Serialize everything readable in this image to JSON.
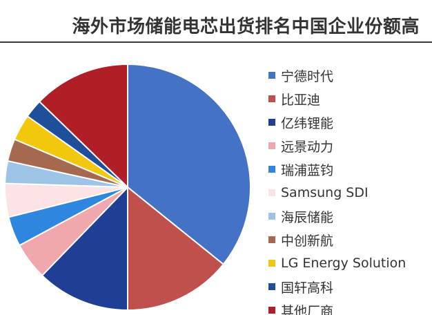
{
  "chart_data": {
    "type": "pie",
    "title": "海外市场储能电芯出货排名中国企业份额高",
    "legend_position": "right",
    "start_angle_deg": 0,
    "direction": "clockwise",
    "series": [
      {
        "name": "宁德时代",
        "value": 36.5,
        "color": "#4472C4"
      },
      {
        "name": "比亚迪",
        "value": 14.5,
        "color": "#C0504D"
      },
      {
        "name": "亿纬锂能",
        "value": 12.5,
        "color": "#1F3F94"
      },
      {
        "name": "远景动力",
        "value": 5.0,
        "color": "#F0A7AE"
      },
      {
        "name": "瑞浦蓝钧",
        "value": 4.0,
        "color": "#2E86DE"
      },
      {
        "name": "Samsung SDI",
        "value": 4.5,
        "color": "#FCE4E6"
      },
      {
        "name": "海辰储能",
        "value": 3.0,
        "color": "#9DC3E6"
      },
      {
        "name": "中创新航",
        "value": 3.0,
        "color": "#A5694F"
      },
      {
        "name": "LG Energy Solution",
        "value": 3.5,
        "color": "#F2C80F"
      },
      {
        "name": "国轩高科",
        "value": 2.5,
        "color": "#1F4E9A"
      },
      {
        "name": "其他厂商",
        "value": 13.0,
        "color": "#B01E28"
      }
    ]
  }
}
